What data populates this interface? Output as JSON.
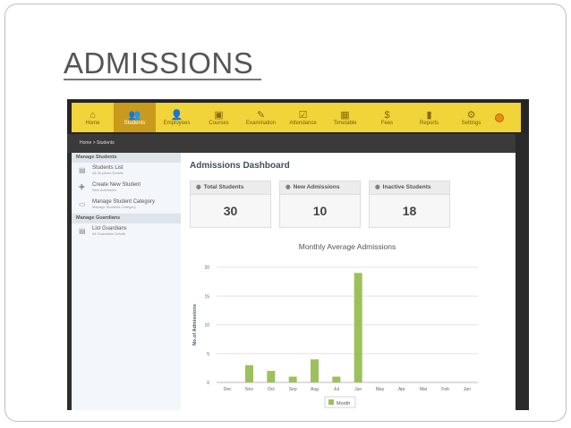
{
  "slide": {
    "title": "ADMISSIONS"
  },
  "nav": {
    "items": [
      {
        "label": "Home",
        "icon": "home-icon",
        "glyph": "⌂"
      },
      {
        "label": "Students",
        "icon": "students-icon",
        "glyph": "👥"
      },
      {
        "label": "Employees",
        "icon": "employees-icon",
        "glyph": "👤"
      },
      {
        "label": "Courses",
        "icon": "courses-icon",
        "glyph": "▣"
      },
      {
        "label": "Examination",
        "icon": "examination-icon",
        "glyph": "✎"
      },
      {
        "label": "Attendance",
        "icon": "attendance-icon",
        "glyph": "☑"
      },
      {
        "label": "Timetable",
        "icon": "timetable-icon",
        "glyph": "▦"
      },
      {
        "label": "Fees",
        "icon": "fees-icon",
        "glyph": "$"
      },
      {
        "label": "Reports",
        "icon": "reports-icon",
        "glyph": "▮"
      },
      {
        "label": "Settings",
        "icon": "settings-icon",
        "glyph": "⚙"
      }
    ],
    "active": "Students"
  },
  "breadcrumb": "Home  >  Students",
  "sidebar": {
    "sections": [
      {
        "heading": "Manage Students",
        "items": [
          {
            "label": "Students List",
            "sub": "All Students Details",
            "icon": "list-icon"
          },
          {
            "label": "Create New Student",
            "sub": "New Admission",
            "icon": "add-user-icon"
          },
          {
            "label": "Manage Student Category",
            "sub": "Manage Students Category",
            "icon": "category-icon"
          }
        ]
      },
      {
        "heading": "Manage Guardians",
        "items": [
          {
            "label": "List Guardians",
            "sub": "All Guardians Details",
            "icon": "list-icon"
          }
        ]
      }
    ]
  },
  "dashboard": {
    "title": "Admissions Dashboard",
    "cards": [
      {
        "label": "Total Students",
        "value": "30"
      },
      {
        "label": "New Admissions",
        "value": "10"
      },
      {
        "label": "Inactive Students",
        "value": "18"
      }
    ]
  },
  "chart_data": {
    "type": "bar",
    "title": "Monthly Average Admissions",
    "xlabel": "",
    "ylabel": "No.of Admissions",
    "categories": [
      "Dec",
      "Nov",
      "Oct",
      "Sep",
      "Aug",
      "Jul",
      "Jun",
      "May",
      "Apr",
      "Mar",
      "Feb",
      "Jan"
    ],
    "series": [
      {
        "name": "Month",
        "values": [
          0,
          3,
          2,
          1,
          4,
          1,
          19,
          0,
          0,
          0,
          0,
          0
        ],
        "color": "#9cc15a"
      }
    ],
    "ylim": [
      0,
      20
    ],
    "yticks": [
      0,
      5,
      10,
      15,
      20
    ],
    "grid": true,
    "legend": "bottom"
  },
  "colors": {
    "nav_bg": "#f1d33a",
    "nav_active": "#c99a1c",
    "bar": "#9cc15a",
    "app_dark": "#2d2d2d"
  }
}
